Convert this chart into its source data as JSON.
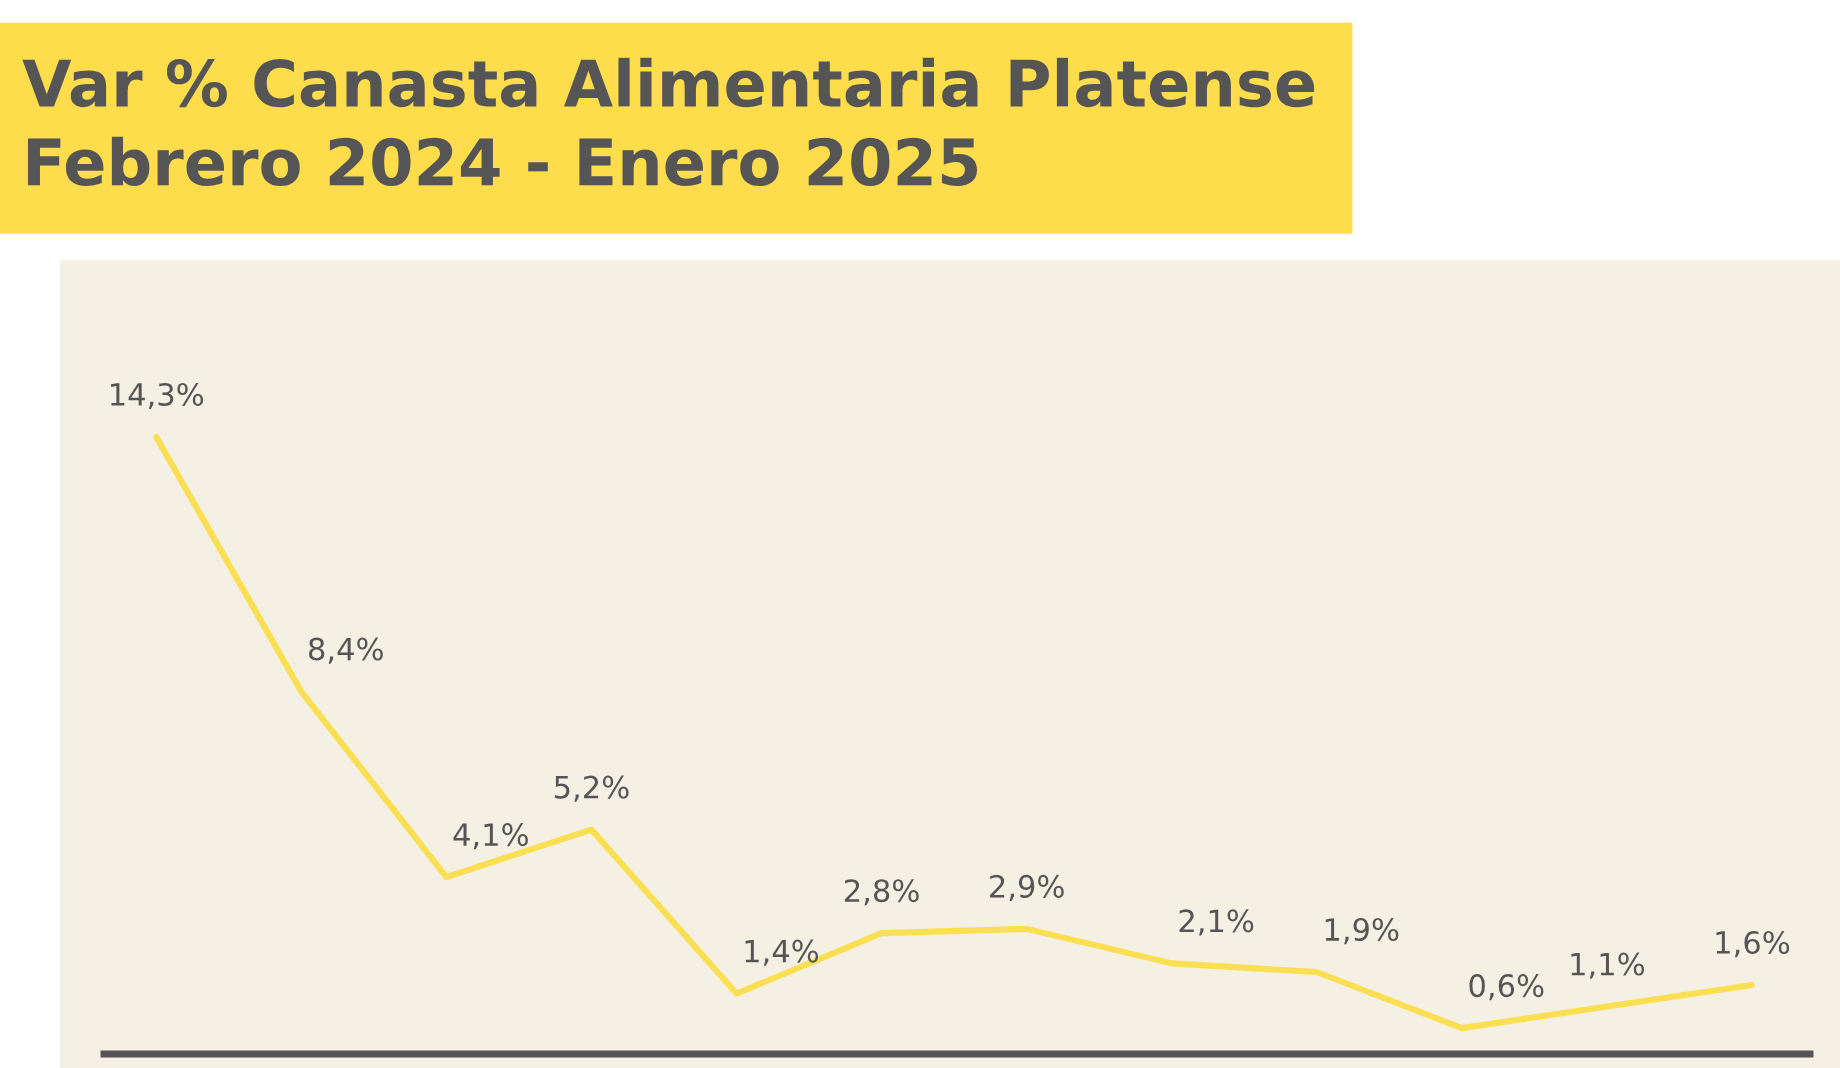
{
  "chart_data": {
    "type": "line",
    "title": "Var % Canasta Alimentaria Platense\nFebrero 2024 - Enero 2025",
    "categories": [
      null,
      null,
      null,
      null,
      null,
      null,
      null,
      null,
      null,
      null,
      null,
      null
    ],
    "series": [
      {
        "color": "#fbdf52",
        "values": [
          14.3,
          8.4,
          4.1,
          5.2,
          1.4,
          2.8,
          2.9,
          2.1,
          1.9,
          0.6,
          1.1,
          1.6
        ],
        "value_labels": [
          "14,3%",
          "8,4%",
          "4,1%",
          "5,2%",
          "1,4%",
          "2,8%",
          "2,9%",
          "2,1%",
          "1,9%",
          "0,6%",
          "1,1%",
          "1,6%"
        ]
      }
    ],
    "ylim": [
      0,
      18.4
    ],
    "grid": false,
    "legend": false,
    "marker": "none",
    "line_style": "solid"
  }
}
